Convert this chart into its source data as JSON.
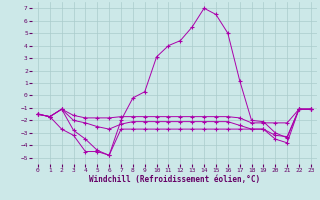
{
  "background_color": "#cce8e8",
  "grid_color": "#aacccc",
  "line_color": "#aa00aa",
  "xlim": [
    -0.5,
    23.5
  ],
  "ylim": [
    -5.5,
    7.5
  ],
  "xticks": [
    0,
    1,
    2,
    3,
    4,
    5,
    6,
    7,
    8,
    9,
    10,
    11,
    12,
    13,
    14,
    15,
    16,
    17,
    18,
    19,
    20,
    21,
    22,
    23
  ],
  "yticks": [
    -5,
    -4,
    -3,
    -2,
    -1,
    0,
    1,
    2,
    3,
    4,
    5,
    6,
    7
  ],
  "xlabel": "Windchill (Refroidissement éolien,°C)",
  "lines": [
    {
      "x": [
        0,
        1,
        2,
        3,
        4,
        5,
        6,
        7,
        8,
        9,
        10,
        11,
        12,
        13,
        14,
        15,
        16,
        17,
        18,
        19,
        20,
        21,
        22,
        23
      ],
      "y": [
        -1.5,
        -1.7,
        -1.1,
        -2.8,
        -3.5,
        -4.4,
        -4.8,
        -2.0,
        -0.2,
        0.3,
        3.1,
        4.0,
        4.4,
        5.5,
        7.0,
        6.5,
        5.0,
        1.2,
        -2.0,
        -2.1,
        -3.0,
        -3.4,
        -1.1,
        -1.1
      ]
    },
    {
      "x": [
        0,
        1,
        2,
        3,
        4,
        5,
        6,
        7,
        8,
        9,
        10,
        11,
        12,
        13,
        14,
        15,
        16,
        17,
        18,
        19,
        20,
        21,
        22,
        23
      ],
      "y": [
        -1.5,
        -1.7,
        -1.1,
        -1.6,
        -1.8,
        -1.8,
        -1.8,
        -1.7,
        -1.7,
        -1.7,
        -1.7,
        -1.7,
        -1.7,
        -1.7,
        -1.7,
        -1.7,
        -1.7,
        -1.8,
        -2.2,
        -2.2,
        -2.2,
        -2.2,
        -1.1,
        -1.1
      ]
    },
    {
      "x": [
        0,
        1,
        2,
        3,
        4,
        5,
        6,
        7,
        8,
        9,
        10,
        11,
        12,
        13,
        14,
        15,
        16,
        17,
        18,
        19,
        20,
        21,
        22,
        23
      ],
      "y": [
        -1.5,
        -1.7,
        -1.1,
        -2.0,
        -2.2,
        -2.5,
        -2.7,
        -2.3,
        -2.1,
        -2.1,
        -2.1,
        -2.1,
        -2.1,
        -2.1,
        -2.1,
        -2.1,
        -2.1,
        -2.4,
        -2.7,
        -2.7,
        -3.2,
        -3.3,
        -1.1,
        -1.1
      ]
    },
    {
      "x": [
        0,
        1,
        2,
        3,
        4,
        5,
        6,
        7,
        8,
        9,
        10,
        11,
        12,
        13,
        14,
        15,
        16,
        17,
        18,
        19,
        20,
        21,
        22,
        23
      ],
      "y": [
        -1.5,
        -1.7,
        -2.7,
        -3.2,
        -4.5,
        -4.5,
        -4.8,
        -2.7,
        -2.7,
        -2.7,
        -2.7,
        -2.7,
        -2.7,
        -2.7,
        -2.7,
        -2.7,
        -2.7,
        -2.7,
        -2.7,
        -2.7,
        -3.5,
        -3.8,
        -1.1,
        -1.1
      ]
    }
  ],
  "tick_fontsize": 4.5,
  "axis_fontsize": 5.5
}
